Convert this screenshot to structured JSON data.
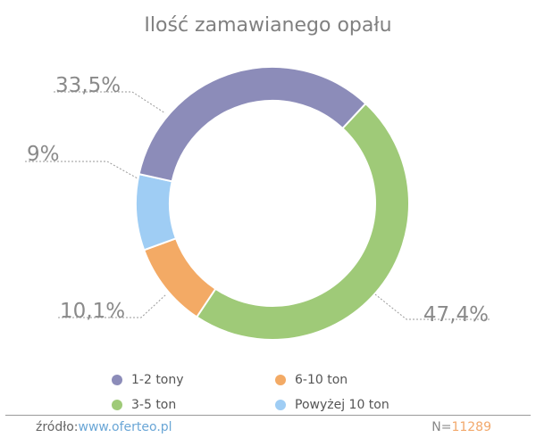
{
  "chart_data": {
    "type": "pie",
    "donut": true,
    "title": "Ilość zamawianego opału",
    "slices": [
      {
        "name": "1-2 tony",
        "value": 33.5,
        "label": "33,5%",
        "color": "#8c8cb9"
      },
      {
        "name": "3-5 ton",
        "value": 47.4,
        "label": "47,4%",
        "color": "#9fca78"
      },
      {
        "name": "6-10 ton",
        "value": 10.1,
        "label": "10,1%",
        "color": "#f3aa65"
      },
      {
        "name": "Powyżej 10 ton",
        "value": 9.0,
        "label": "9%",
        "color": "#9fcdf4"
      }
    ],
    "legend_position": "bottom"
  },
  "footer": {
    "source_label": "źródło:",
    "source_link": "www.oferteo.pl",
    "n_label": "N=",
    "n_value": "11289"
  }
}
